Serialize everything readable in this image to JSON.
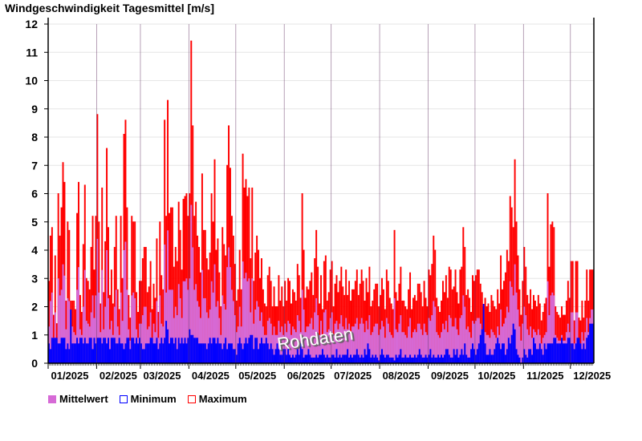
{
  "chart_data": {
    "type": "bar",
    "title": "Windgeschwindigkeit Tagesmittel [m/s]",
    "xlabel": "",
    "ylabel": "m/s",
    "ylim": [
      0,
      12.2
    ],
    "yticks": [
      "0",
      "1",
      "2",
      "3",
      "4",
      "5",
      "6",
      "7",
      "8",
      "9",
      "10",
      "11",
      "12"
    ],
    "months": [
      "01/2025",
      "02/2025",
      "03/2025",
      "04/2025",
      "05/2025",
      "06/2025",
      "07/2025",
      "08/2025",
      "09/2025",
      "10/2025",
      "11/2025",
      "12/2025"
    ],
    "month_start_day": [
      0,
      31,
      59,
      90,
      120,
      151,
      181,
      212,
      243,
      273,
      304,
      334
    ],
    "grid": true,
    "legend_position": "bottom-left",
    "watermark": "Rohdaten",
    "colors": {
      "mean": "#d66ad6",
      "min": "#0000ff",
      "max": "#ff0000"
    },
    "series": [
      {
        "name": "Mittelwert",
        "values": [
          1.3,
          2.2,
          2.5,
          0.9,
          1.8,
          0.8,
          3.0,
          2.4,
          2.6,
          3.5,
          3.1,
          1.2,
          2.3,
          2.2,
          1.0,
          1.3,
          1.1,
          1.0,
          2.6,
          3.4,
          1.2,
          1.0,
          2.0,
          3.3,
          1.5,
          1.4,
          1.3,
          1.8,
          2.4,
          1.6,
          2.4,
          4.4,
          2.5,
          1.1,
          3.3,
          1.2,
          2.0,
          4.0,
          2.3,
          1.2,
          1.5,
          1.0,
          2.0,
          2.6,
          1.3,
          1.0,
          2.5,
          1.5,
          4.0,
          4.3,
          2.6,
          1.2,
          0.8,
          2.4,
          2.5,
          2.3,
          1.2,
          0.9,
          1.4,
          1.4,
          1.7,
          2.0,
          2.0,
          1.2,
          1.3,
          1.8,
          0.9,
          1.4,
          1.1,
          2.2,
          0.9,
          2.4,
          1.4,
          1.3,
          4.2,
          2.5,
          4.7,
          2.6,
          2.6,
          2.6,
          1.6,
          2.0,
          1.7,
          2.8,
          2.3,
          1.6,
          2.9,
          2.9,
          3.0,
          2.6,
          3.0,
          5.6,
          4.1,
          2.6,
          2.8,
          2.2,
          2.0,
          1.6,
          3.3,
          2.3,
          2.3,
          1.8,
          1.6,
          1.9,
          2.9,
          2.5,
          3.5,
          2.0,
          2.2,
          1.6,
          1.0,
          2.4,
          2.1,
          1.9,
          3.4,
          4.1,
          3.4,
          2.6,
          2.2,
          1.7,
          1.1,
          1.3,
          2.0,
          1.3,
          3.6,
          3.0,
          3.2,
          2.9,
          3.0,
          1.8,
          3.0,
          1.4,
          1.9,
          2.2,
          2.0,
          1.5,
          1.8,
          1.3,
          1.0,
          1.0,
          1.5,
          1.6,
          1.4,
          1.0,
          1.3,
          1.0,
          1.0,
          1.5,
          1.1,
          1.3,
          1.0,
          1.4,
          1.1,
          1.5,
          1.4,
          1.0,
          1.3,
          1.2,
          1.1,
          1.7,
          1.5,
          1.1,
          2.6,
          1.9,
          1.1,
          1.3,
          1.3,
          1.4,
          1.6,
          1.2,
          1.8,
          2.3,
          1.7,
          1.0,
          1.5,
          0.9,
          1.8,
          1.9,
          1.1,
          1.2,
          1.6,
          1.8,
          1.0,
          1.4,
          1.5,
          1.2,
          1.4,
          1.7,
          1.3,
          1.2,
          1.6,
          1.2,
          1.4,
          1.1,
          1.3,
          1.3,
          1.4,
          1.6,
          1.2,
          1.4,
          1.6,
          1.4,
          1.1,
          1.5,
          1.2,
          1.7,
          1.0,
          1.1,
          1.3,
          1.4,
          1.4,
          1.0,
          1.2,
          1.5,
          1.3,
          0.9,
          1.6,
          1.4,
          1.1,
          1.0,
          0.9,
          2.3,
          1.2,
          1.1,
          1.4,
          1.7,
          1.1,
          1.1,
          1.0,
          0.9,
          1.3,
          1.6,
          0.9,
          1.1,
          1.2,
          1.1,
          1.4,
          1.4,
          1.2,
          1.0,
          1.4,
          1.1,
          1.0,
          1.6,
          1.5,
          1.7,
          2.2,
          2.0,
          1.1,
          1.0,
          0.9,
          1.1,
          1.4,
          1.2,
          1.5,
          1.1,
          1.7,
          1.6,
          1.3,
          1.3,
          1.6,
          1.2,
          1.0,
          1.6,
          1.7,
          2.4,
          2.0,
          1.2,
          1.3,
          1.1,
          0.9,
          1.5,
          1.4,
          1.5,
          1.6,
          1.6,
          1.4,
          1.2,
          1.0,
          1.1,
          1.0,
          1.0,
          0.9,
          1.2,
          1.1,
          1.0,
          0.9,
          1.3,
          1.0,
          1.9,
          1.3,
          1.4,
          1.6,
          2.0,
          1.8,
          2.9,
          2.7,
          2.4,
          3.5,
          2.5,
          1.9,
          1.3,
          0.8,
          1.4,
          2.0,
          1.7,
          1.2,
          1.0,
          1.3,
          0.9,
          1.2,
          1.1,
          1.0,
          1.2,
          1.0,
          0.7,
          0.9,
          1.0,
          1.1,
          2.9,
          1.7,
          2.4,
          2.5,
          2.4,
          1.0,
          0.9,
          0.8,
          0.8,
          1.0,
          0.8,
          0.8,
          1.1,
          1.4,
          1.1,
          1.8,
          1.8,
          0.7,
          1.8,
          1.8,
          0.8,
          0.7,
          1.1,
          0.8,
          1.1,
          1.6,
          1.1,
          1.6,
          1.9,
          1.9
        ]
      },
      {
        "name": "Minimum",
        "values": [
          0.7,
          0.5,
          0.9,
          0.9,
          0.9,
          0.9,
          0.7,
          0.7,
          0.9,
          0.9,
          0.9,
          0.5,
          0.7,
          0.5,
          1.9,
          0.7,
          0.7,
          0.7,
          0.9,
          0.7,
          0.9,
          0.9,
          0.7,
          0.9,
          0.7,
          0.7,
          0.9,
          0.9,
          0.5,
          0.9,
          0.7,
          0.9,
          0.9,
          0.9,
          0.7,
          0.9,
          0.9,
          0.7,
          0.9,
          0.5,
          0.9,
          0.9,
          0.9,
          0.7,
          0.7,
          0.9,
          0.7,
          0.7,
          0.5,
          0.7,
          0.9,
          0.9,
          0.5,
          0.9,
          0.9,
          0.7,
          0.9,
          0.7,
          0.9,
          0.7,
          0.5,
          0.5,
          0.7,
          0.7,
          0.7,
          0.9,
          0.9,
          0.7,
          0.7,
          0.9,
          0.5,
          0.7,
          0.9,
          0.7,
          0.9,
          1.5,
          1.2,
          0.7,
          0.9,
          0.9,
          0.7,
          0.9,
          0.5,
          0.9,
          0.7,
          0.9,
          0.7,
          0.9,
          0.7,
          0.9,
          1.2,
          1.0,
          1.0,
          0.9,
          0.9,
          0.9,
          0.7,
          0.7,
          0.7,
          0.7,
          0.7,
          0.5,
          0.7,
          0.9,
          0.7,
          0.9,
          0.9,
          0.7,
          0.9,
          0.7,
          0.7,
          0.5,
          0.7,
          0.9,
          0.5,
          0.7,
          0.7,
          0.7,
          0.5,
          0.5,
          0.3,
          0.7,
          0.9,
          0.7,
          0.5,
          0.7,
          0.9,
          0.7,
          0.9,
          1.0,
          1.0,
          0.5,
          0.9,
          0.9,
          0.5,
          0.7,
          0.9,
          0.7,
          0.7,
          0.9,
          0.7,
          0.5,
          0.7,
          0.5,
          0.3,
          0.5,
          0.7,
          0.5,
          0.3,
          0.3,
          0.5,
          0.5,
          0.3,
          0.5,
          0.3,
          0.2,
          0.3,
          0.2,
          0.3,
          0.5,
          0.3,
          0.7,
          0.5,
          0.2,
          0.3,
          0.3,
          0.5,
          0.3,
          0.2,
          0.2,
          0.2,
          0.3,
          0.2,
          0.3,
          0.3,
          0.5,
          0.3,
          0.2,
          0.3,
          0.2,
          0.2,
          0.3,
          0.3,
          0.2,
          0.5,
          0.2,
          0.3,
          0.2,
          0.3,
          0.3,
          0.3,
          0.5,
          0.2,
          0.3,
          0.2,
          0.3,
          0.3,
          0.5,
          0.3,
          0.2,
          0.3,
          0.2,
          0.5,
          0.3,
          0.7,
          0.5,
          0.2,
          0.3,
          0.2,
          0.3,
          0.2,
          0.1,
          0.3,
          0.5,
          0.3,
          0.2,
          0.3,
          0.3,
          0.2,
          0.2,
          0.2,
          0.1,
          0.3,
          0.2,
          0.3,
          0.5,
          0.2,
          0.2,
          0.3,
          0.2,
          0.2,
          0.3,
          0.2,
          0.2,
          0.3,
          0.2,
          0.3,
          0.5,
          0.3,
          0.2,
          0.2,
          0.3,
          0.2,
          0.3,
          0.5,
          0.2,
          0.3,
          0.2,
          0.2,
          0.3,
          0.2,
          0.3,
          0.2,
          0.3,
          0.5,
          0.5,
          0.3,
          0.2,
          0.2,
          0.5,
          0.3,
          0.5,
          0.2,
          0.3,
          0.5,
          0.3,
          0.7,
          0.3,
          0.2,
          0.2,
          0.5,
          0.7,
          0.5,
          0.3,
          0.5,
          0.7,
          1.0,
          1.2,
          2.1,
          0.7,
          0.3,
          0.3,
          0.5,
          0.3,
          0.3,
          0.5,
          0.7,
          0.9,
          0.7,
          0.5,
          0.7,
          0.7,
          0.3,
          0.5,
          0.9,
          0.7,
          1.0,
          1.4,
          1.2,
          0.5,
          0.3,
          0.2,
          0.0,
          0.2,
          0.5,
          0.3,
          0.2,
          0.5,
          0.5,
          0.3,
          0.9,
          0.7,
          0.5,
          0.5,
          0.7,
          0.5,
          0.3,
          0.7,
          0.5,
          0.7,
          0.7,
          0.7,
          0.7,
          0.9,
          0.9,
          0.7,
          0.7,
          0.7,
          0.9,
          0.7,
          0.7,
          0.7,
          0.9,
          0.9,
          0.7,
          0.7,
          0.5,
          0.7,
          0.9,
          0.9,
          0.7,
          0.5,
          0.7,
          0.5,
          0.9,
          1.0,
          1.4,
          1.4,
          1.4
        ]
      },
      {
        "name": "Maximum",
        "values": [
          2.9,
          4.5,
          4.8,
          1.7,
          3.8,
          1.4,
          6.0,
          4.5,
          5.5,
          7.1,
          6.4,
          2.2,
          5.0,
          4.7,
          2.2,
          2.2,
          2.2,
          1.9,
          5.3,
          6.4,
          2.4,
          1.8,
          4.2,
          6.3,
          3.0,
          2.9,
          2.6,
          4.1,
          5.2,
          3.3,
          5.2,
          8.8,
          5.0,
          2.1,
          6.2,
          2.5,
          4.3,
          7.6,
          4.8,
          2.4,
          3.3,
          2.1,
          4.1,
          5.2,
          2.6,
          1.9,
          5.2,
          3.0,
          8.1,
          8.6,
          5.5,
          2.4,
          1.6,
          5.2,
          5.0,
          5.0,
          2.5,
          1.8,
          2.9,
          2.9,
          3.7,
          4.1,
          4.1,
          2.5,
          2.7,
          3.6,
          1.9,
          2.8,
          2.3,
          4.4,
          1.8,
          5.0,
          3.1,
          2.6,
          8.6,
          5.2,
          9.3,
          5.3,
          5.5,
          5.5,
          3.4,
          4.1,
          3.6,
          5.7,
          4.7,
          3.3,
          5.8,
          5.9,
          6.0,
          5.2,
          6.0,
          11.4,
          8.4,
          5.2,
          5.7,
          4.5,
          4.1,
          3.2,
          6.7,
          4.7,
          4.7,
          3.7,
          3.3,
          3.9,
          6.0,
          5.0,
          7.2,
          4.0,
          4.4,
          3.2,
          2.0,
          4.8,
          4.2,
          3.8,
          7.0,
          8.4,
          6.9,
          5.2,
          4.5,
          3.5,
          2.2,
          2.6,
          4.0,
          2.6,
          7.4,
          6.2,
          6.5,
          5.9,
          6.2,
          3.7,
          6.2,
          2.9,
          3.9,
          4.5,
          4.0,
          3.0,
          3.7,
          2.6,
          2.1,
          2.0,
          3.1,
          3.4,
          2.9,
          2.0,
          2.7,
          2.0,
          2.0,
          3.1,
          2.2,
          2.7,
          2.0,
          2.9,
          2.2,
          3.0,
          2.9,
          2.1,
          2.6,
          2.5,
          2.2,
          3.5,
          3.1,
          2.3,
          6.0,
          4.0,
          2.3,
          2.7,
          2.6,
          2.9,
          3.2,
          2.4,
          3.7,
          4.7,
          3.4,
          2.1,
          3.1,
          1.9,
          3.6,
          3.8,
          2.2,
          2.5,
          3.3,
          3.6,
          2.0,
          2.8,
          3.1,
          2.5,
          2.9,
          3.4,
          2.7,
          2.4,
          3.3,
          2.4,
          2.9,
          2.2,
          2.6,
          2.6,
          2.9,
          3.3,
          2.4,
          2.8,
          3.3,
          2.9,
          2.2,
          3.0,
          2.5,
          3.4,
          2.0,
          2.2,
          2.6,
          2.8,
          2.8,
          2.0,
          2.4,
          3.0,
          2.6,
          1.9,
          3.3,
          2.9,
          2.3,
          2.1,
          1.9,
          4.7,
          2.5,
          2.2,
          2.8,
          3.4,
          2.2,
          2.2,
          2.0,
          1.9,
          2.6,
          3.2,
          1.9,
          2.3,
          2.4,
          2.2,
          2.8,
          2.8,
          2.5,
          2.0,
          2.9,
          2.3,
          2.0,
          3.3,
          3.1,
          3.5,
          4.5,
          4.0,
          2.3,
          2.0,
          1.8,
          2.2,
          2.9,
          2.5,
          3.1,
          2.3,
          3.4,
          3.3,
          2.6,
          2.7,
          3.3,
          2.5,
          2.1,
          3.3,
          3.4,
          4.8,
          4.1,
          2.4,
          2.6,
          2.3,
          1.8,
          3.1,
          2.9,
          3.1,
          3.3,
          3.3,
          2.8,
          2.5,
          2.0,
          2.3,
          2.0,
          2.1,
          1.8,
          2.4,
          2.2,
          2.0,
          1.9,
          2.6,
          2.1,
          3.8,
          2.6,
          2.9,
          3.2,
          4.0,
          3.6,
          5.9,
          5.5,
          4.8,
          7.2,
          5.0,
          3.8,
          2.6,
          1.7,
          2.9,
          4.1,
          3.4,
          2.4,
          2.1,
          2.6,
          1.9,
          2.4,
          2.2,
          2.0,
          2.4,
          2.1,
          1.5,
          1.8,
          2.1,
          2.3,
          6.0,
          3.4,
          4.9,
          5.0,
          4.8,
          2.0,
          1.8,
          1.7,
          1.6,
          2.0,
          1.7,
          1.7,
          2.2,
          2.9,
          2.3,
          3.6,
          3.6,
          1.5,
          3.6,
          3.6,
          1.6,
          1.5,
          2.2,
          1.6,
          2.2,
          3.3,
          2.2,
          3.3,
          3.3,
          3.3
        ]
      }
    ]
  }
}
